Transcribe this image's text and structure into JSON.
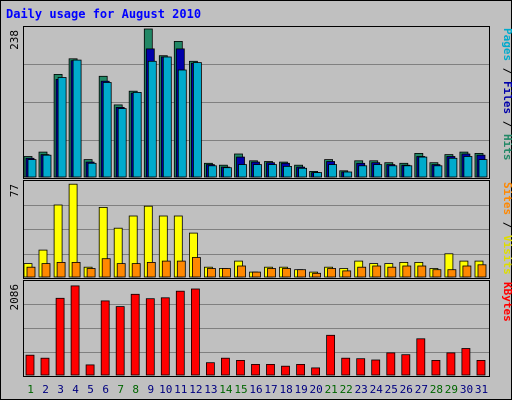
{
  "chart_data": {
    "type": "bar",
    "title": "Daily usage for August 2010",
    "days": [
      "1",
      "2",
      "3",
      "4",
      "5",
      "6",
      "7",
      "8",
      "9",
      "10",
      "11",
      "12",
      "13",
      "14",
      "15",
      "16",
      "17",
      "18",
      "19",
      "20",
      "21",
      "22",
      "23",
      "24",
      "25",
      "26",
      "27",
      "28",
      "29",
      "30",
      "31"
    ],
    "weekend_days": [
      "1",
      "7",
      "8",
      "14",
      "15",
      "21",
      "22",
      "28",
      "29"
    ],
    "panels": [
      {
        "id": "top",
        "max_label": "238",
        "ymax": 238,
        "side_label": [
          {
            "text": "Pages",
            "color": "#00aacc"
          },
          {
            "text": " / ",
            "color": "#000000"
          },
          {
            "text": "Files",
            "color": "#0000aa"
          },
          {
            "text": " / ",
            "color": "#000000"
          },
          {
            "text": "Hits",
            "color": "#228866"
          }
        ],
        "series": [
          {
            "name": "Hits",
            "color": "#228866",
            "values": [
              33,
              40,
              165,
              190,
              28,
              162,
              116,
              138,
              238,
              195,
              218,
              186,
              22,
              19,
              37,
              26,
              25,
              24,
              19,
              9,
              28,
              10,
              26,
              26,
              23,
              22,
              38,
              23,
              36,
              40,
              38
            ]
          },
          {
            "name": "Files",
            "color": "#0000aa",
            "values": [
              30,
              36,
              157,
              187,
              24,
              154,
              112,
              135,
              206,
              193,
              206,
              183,
              20,
              16,
              32,
              24,
              23,
              22,
              16,
              7,
              25,
              8,
              22,
              23,
              20,
              19,
              33,
              20,
              33,
              37,
              35
            ]
          },
          {
            "name": "Pages",
            "color": "#00aacc",
            "values": [
              28,
              35,
              160,
              188,
              22,
              152,
              110,
              136,
              186,
              193,
              172,
              184,
              18,
              15,
              20,
              20,
              20,
              17,
              14,
              7,
              20,
              8,
              18,
              20,
              18,
              18,
              32,
              18,
              30,
              33,
              28
            ]
          }
        ]
      },
      {
        "id": "mid",
        "max_label": "77",
        "ymax": 77,
        "side_label": [
          {
            "text": "Sites",
            "color": "#ff8800"
          },
          {
            "text": " / ",
            "color": "#000000"
          },
          {
            "text": "Visits",
            "color": "#dddd00"
          }
        ],
        "series": [
          {
            "name": "Visits",
            "color": "#ffff00",
            "values": [
              11,
              22,
              59,
              76,
              8,
              57,
              40,
              50,
              58,
              50,
              50,
              36,
              8,
              7,
              13,
              4,
              8,
              8,
              6,
              4,
              8,
              7,
              13,
              11,
              11,
              12,
              12,
              7,
              19,
              13,
              13
            ]
          },
          {
            "name": "Sites",
            "color": "#ff8800",
            "values": [
              8,
              11,
              12,
              12,
              7,
              15,
              11,
              11,
              12,
              13,
              13,
              16,
              7,
              7,
              9,
              4,
              7,
              7,
              6,
              3,
              7,
              5,
              8,
              9,
              8,
              9,
              9,
              6,
              6,
              9,
              10
            ]
          }
        ]
      },
      {
        "id": "bottom",
        "max_label": "2086",
        "ymax": 2086,
        "side_label": [
          {
            "text": "KBytes",
            "color": "#ff0000"
          }
        ],
        "series": [
          {
            "name": "KBytes",
            "color": "#ff0000",
            "values": [
              450,
              380,
              1740,
              2020,
              230,
              1680,
              1550,
              1830,
              1730,
              1750,
              1900,
              1950,
              280,
              380,
              330,
              240,
              240,
              200,
              240,
              160,
              900,
              380,
              370,
              340,
              500,
              460,
              820,
              330,
              500,
              600,
              330
            ]
          }
        ]
      }
    ],
    "colors": {
      "background": "#c0c0c0",
      "border": "#000000",
      "title": "#0000ff",
      "gridline": "#808080",
      "weekday_label": "#000080",
      "weekend_label": "#006600"
    }
  }
}
